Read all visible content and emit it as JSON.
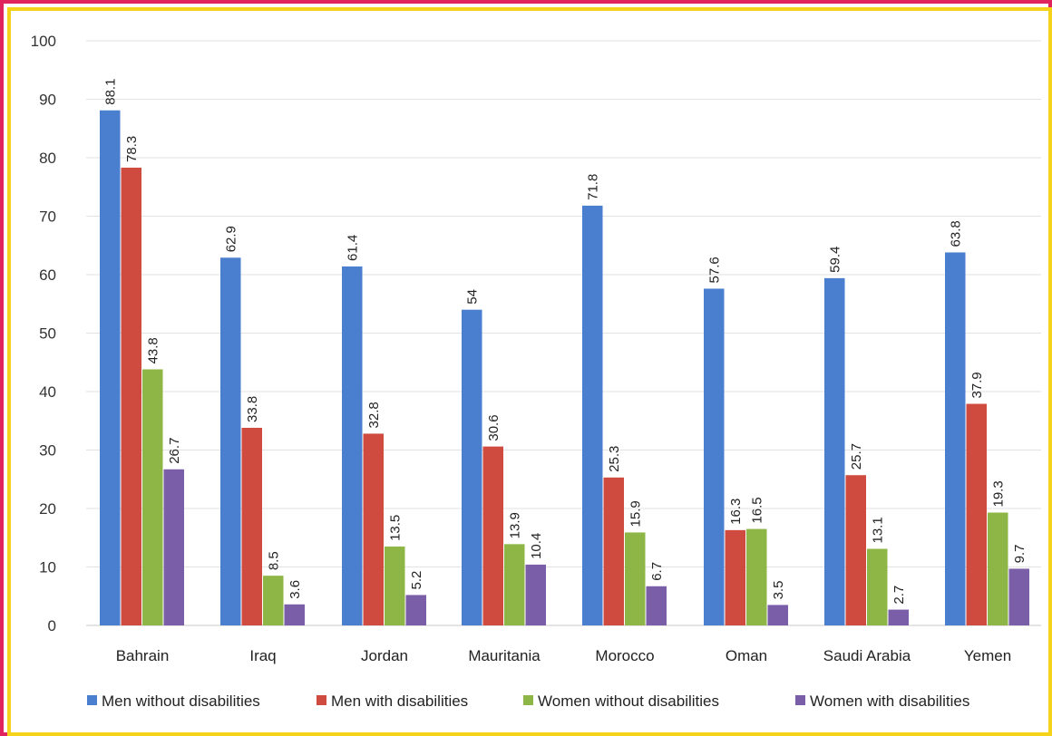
{
  "chart_data": {
    "type": "bar",
    "title": "",
    "xlabel": "",
    "ylabel": "",
    "ylim": [
      0,
      100
    ],
    "yticks": [
      0,
      10,
      20,
      30,
      40,
      50,
      60,
      70,
      80,
      90,
      100
    ],
    "grid": true,
    "legend_position": "bottom",
    "categories": [
      "Bahrain",
      "Iraq",
      "Jordan",
      "Mauritania",
      "Morocco",
      "Oman",
      "Saudi Arabia",
      "Yemen"
    ],
    "series": [
      {
        "name": "Men without disabilities",
        "color": "#4a7fcf",
        "values": [
          88.1,
          62.9,
          61.4,
          54,
          71.8,
          57.6,
          59.4,
          63.8
        ]
      },
      {
        "name": "Men with disabilities",
        "color": "#cf4b3f",
        "values": [
          78.3,
          33.8,
          32.8,
          30.6,
          25.3,
          16.3,
          25.7,
          37.9
        ]
      },
      {
        "name": "Women without disabilities",
        "color": "#8db646",
        "values": [
          43.8,
          8.5,
          13.5,
          13.9,
          15.9,
          16.5,
          13.1,
          19.3
        ]
      },
      {
        "name": "Women with disabilities",
        "color": "#7a5ea8",
        "values": [
          26.7,
          3.6,
          5.2,
          10.4,
          6.7,
          3.5,
          2.7,
          9.7
        ]
      }
    ],
    "data_labels": [
      [
        "88.1",
        "62.9",
        "61.4",
        "54",
        "71.8",
        "57.6",
        "59.4",
        "63.8"
      ],
      [
        "78.3",
        "33.8",
        "32.8",
        "30.6",
        "25.3",
        "16.3",
        "25.7",
        "37.9"
      ],
      [
        "43.8",
        "8.5",
        "13.5",
        "13.9",
        "15.9",
        "16.5",
        "13.1",
        "19.3"
      ],
      [
        "26.7",
        "3.6",
        "5.2",
        "10.4",
        "6.7",
        "3.5",
        "2.7",
        "9.7"
      ]
    ]
  }
}
